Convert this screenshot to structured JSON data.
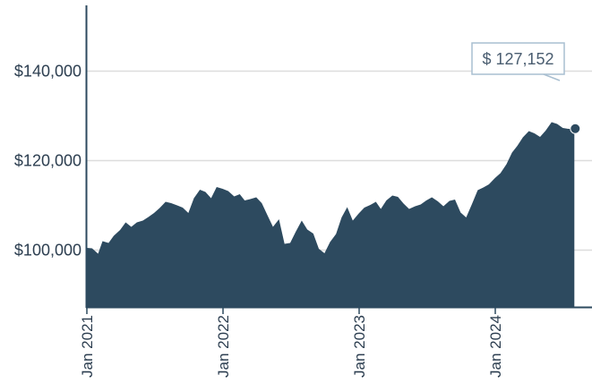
{
  "chart_data": {
    "type": "area",
    "title": "",
    "xlabel": "",
    "ylabel": "",
    "ylim": [
      87000,
      155000
    ],
    "y_ticks": [
      100000,
      120000,
      140000
    ],
    "y_tick_labels": [
      "$100,000",
      "$120,000",
      "$140,000"
    ],
    "x_ticks": [
      "2021-01-01",
      "2022-01-01",
      "2023-01-01",
      "2024-01-01"
    ],
    "x_tick_labels": [
      "Jan 2021",
      "Jan 2022",
      "Jan 2023",
      "Jan 2024"
    ],
    "grid": "horizontal",
    "legend": "none",
    "callout_label": "$ 127,152",
    "colors": {
      "fill": "#2d4a5f",
      "axis": "#2d4a5f",
      "grid": "#dddddd",
      "callout_border": "#a9bfd1"
    },
    "series": [
      {
        "x": [
          "2021-01-01",
          "2021-01-15",
          "2021-01-31",
          "2021-02-12",
          "2021-02-28",
          "2021-03-14",
          "2021-03-31",
          "2021-04-15",
          "2021-04-30",
          "2021-05-15",
          "2021-05-31",
          "2021-06-15",
          "2021-06-30",
          "2021-07-15",
          "2021-07-31",
          "2021-08-15",
          "2021-08-31",
          "2021-09-15",
          "2021-09-30",
          "2021-10-15",
          "2021-10-31",
          "2021-11-15",
          "2021-11-30",
          "2021-12-15",
          "2021-12-31",
          "2022-01-15",
          "2022-01-31",
          "2022-02-15",
          "2022-02-28",
          "2022-03-15",
          "2022-03-31",
          "2022-04-15",
          "2022-04-30",
          "2022-05-15",
          "2022-05-31",
          "2022-06-15",
          "2022-06-30",
          "2022-07-15",
          "2022-07-31",
          "2022-08-15",
          "2022-08-31",
          "2022-09-15",
          "2022-09-30",
          "2022-10-15",
          "2022-10-31",
          "2022-11-15",
          "2022-11-30",
          "2022-12-15",
          "2022-12-31",
          "2023-01-15",
          "2023-01-31",
          "2023-02-15",
          "2023-02-28",
          "2023-03-15",
          "2023-03-31",
          "2023-04-15",
          "2023-04-30",
          "2023-05-15",
          "2023-05-31",
          "2023-06-15",
          "2023-06-30",
          "2023-07-15",
          "2023-07-31",
          "2023-08-15",
          "2023-08-31",
          "2023-09-15",
          "2023-09-30",
          "2023-10-15",
          "2023-10-31",
          "2023-11-15",
          "2023-11-30",
          "2023-12-15",
          "2023-12-31",
          "2024-01-15",
          "2024-01-31",
          "2024-02-15",
          "2024-02-29",
          "2024-03-15",
          "2024-03-31",
          "2024-04-15",
          "2024-04-30",
          "2024-05-15",
          "2024-05-31",
          "2024-06-15",
          "2024-06-30",
          "2024-07-15",
          "2024-07-31"
        ],
        "values": [
          100500,
          100400,
          99200,
          102000,
          101600,
          103200,
          104500,
          106200,
          105200,
          106200,
          106600,
          107400,
          108300,
          109400,
          110800,
          110500,
          110000,
          109500,
          108300,
          111600,
          113500,
          113000,
          111600,
          114100,
          113700,
          113200,
          112000,
          112500,
          111100,
          111400,
          111800,
          110500,
          107800,
          105200,
          106900,
          101400,
          101600,
          104100,
          106600,
          104600,
          103700,
          100300,
          99300,
          101800,
          103600,
          107300,
          109600,
          106600,
          108200,
          109500,
          110100,
          110800,
          109200,
          111100,
          112200,
          111900,
          110400,
          109200,
          109800,
          110200,
          111100,
          111800,
          110900,
          109800,
          111000,
          111300,
          108400,
          107300,
          110400,
          113400,
          114000,
          114700,
          116100,
          117200,
          119200,
          121800,
          123300,
          125200,
          126600,
          126100,
          125300,
          126700,
          128600,
          128200,
          127300,
          127100,
          127152
        ]
      }
    ]
  }
}
